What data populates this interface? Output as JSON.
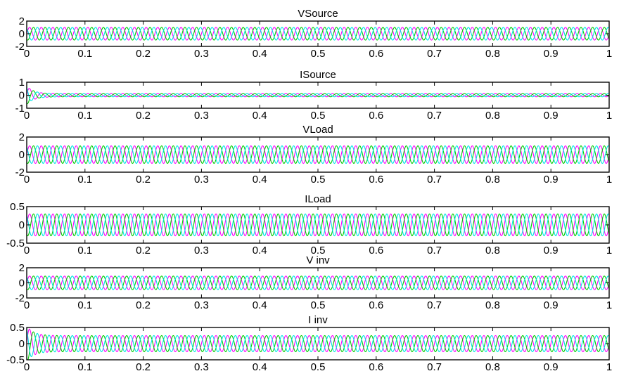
{
  "chart_data": [
    {
      "type": "line",
      "title": "VSource",
      "xlim": [
        0,
        1
      ],
      "ylim": [
        -2,
        2
      ],
      "yticks": [
        "2",
        "0",
        "-2"
      ],
      "xticks": [
        "0",
        "0.1",
        "0.2",
        "0.3",
        "0.4",
        "0.5",
        "0.6",
        "0.7",
        "0.8",
        "0.9",
        "1"
      ],
      "frequency_hz": 50,
      "amplitude": 1.0,
      "transient_amp": 0,
      "phases": 3,
      "series_colors": [
        "#ff00ff",
        "#00cc00",
        "#00e5e5"
      ]
    },
    {
      "type": "line",
      "title": "ISource",
      "xlim": [
        0,
        1
      ],
      "ylim": [
        -1,
        1
      ],
      "yticks": [
        "1",
        "0",
        "-1"
      ],
      "xticks": [
        "0",
        "0.1",
        "0.2",
        "0.3",
        "0.4",
        "0.5",
        "0.6",
        "0.7",
        "0.8",
        "0.9",
        "1"
      ],
      "frequency_hz": 50,
      "amplitude": 0.12,
      "transient_amp": 0.6,
      "phases": 3,
      "series_colors": [
        "#ff00ff",
        "#00cc00",
        "#00e5e5"
      ]
    },
    {
      "type": "line",
      "title": "VLoad",
      "xlim": [
        0,
        1
      ],
      "ylim": [
        -2,
        2
      ],
      "yticks": [
        "2",
        "0",
        "-2"
      ],
      "xticks": [
        "0",
        "0.1",
        "0.2",
        "0.3",
        "0.4",
        "0.5",
        "0.6",
        "0.7",
        "0.8",
        "0.9",
        "1"
      ],
      "frequency_hz": 50,
      "amplitude": 1.0,
      "transient_amp": 0,
      "phases": 3,
      "series_colors": [
        "#ff00ff",
        "#00cc00",
        "#00e5e5"
      ]
    },
    {
      "type": "line",
      "title": "ILoad",
      "xlim": [
        0,
        1
      ],
      "ylim": [
        -0.5,
        0.5
      ],
      "yticks": [
        "0.5",
        "0",
        "-0.5"
      ],
      "xticks": [
        "0",
        "0.1",
        "0.2",
        "0.3",
        "0.4",
        "0.5",
        "0.6",
        "0.7",
        "0.8",
        "0.9",
        "1"
      ],
      "frequency_hz": 50,
      "amplitude": 0.3,
      "transient_amp": 0,
      "phases": 3,
      "series_colors": [
        "#ff00ff",
        "#00cc00",
        "#00e5e5"
      ]
    },
    {
      "type": "line",
      "title": "V inv",
      "xlim": [
        0,
        1
      ],
      "ylim": [
        -2,
        2
      ],
      "yticks": [
        "2",
        "0",
        "-2"
      ],
      "xticks": [
        "0",
        "0.1",
        "0.2",
        "0.3",
        "0.4",
        "0.5",
        "0.6",
        "0.7",
        "0.8",
        "0.9",
        "1"
      ],
      "frequency_hz": 50,
      "amplitude": 0.9,
      "transient_amp": 0,
      "phases": 3,
      "series_colors": [
        "#ff00ff",
        "#00cc00",
        "#00e5e5"
      ]
    },
    {
      "type": "line",
      "title": "I inv",
      "xlim": [
        0,
        1
      ],
      "ylim": [
        -0.5,
        0.5
      ],
      "yticks": [
        "0.5",
        "0",
        "-0.5"
      ],
      "xticks": [
        "0",
        "0.1",
        "0.2",
        "0.3",
        "0.4",
        "0.5",
        "0.6",
        "0.7",
        "0.8",
        "0.9",
        "1"
      ],
      "frequency_hz": 50,
      "amplitude": 0.25,
      "transient_amp": 0.3,
      "phases": 3,
      "series_colors": [
        "#ff00ff",
        "#00cc00",
        "#00e5e5"
      ]
    }
  ]
}
